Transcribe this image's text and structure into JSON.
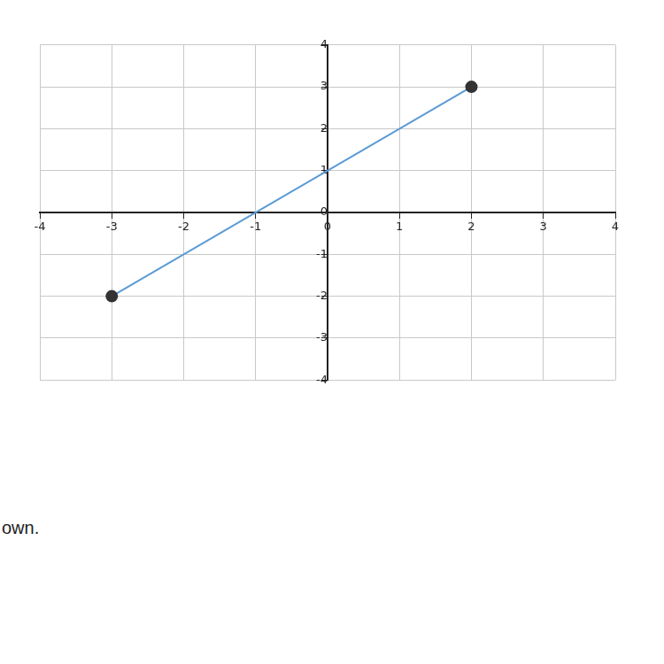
{
  "chart_data": {
    "type": "line",
    "x": [
      -3,
      2
    ],
    "values": [
      -2,
      3
    ],
    "color": "#5b9bd5",
    "marker": "circle",
    "xlim": [
      -4,
      4
    ],
    "ylim": [
      -4,
      4
    ],
    "xticks": [
      -4,
      -3,
      -2,
      -1,
      0,
      1,
      2,
      3,
      4
    ],
    "yticks": [
      -4,
      -3,
      -2,
      -1,
      0,
      1,
      2,
      3,
      4
    ],
    "grid": true,
    "annotations": [
      "own."
    ]
  }
}
